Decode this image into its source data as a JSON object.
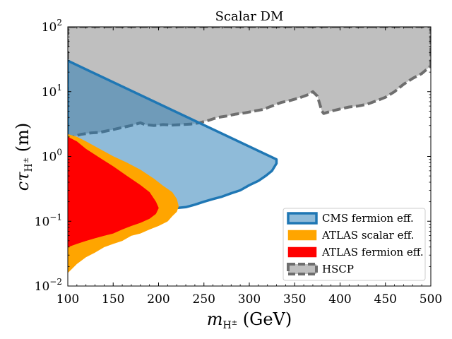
{
  "chart_data": {
    "type": "area",
    "title": "Scalar DM",
    "xlabel": "m_{H^±} (GeV)",
    "ylabel": "cτ_{H^±} (m)",
    "xscale": "linear",
    "yscale": "log",
    "xlim": [
      100,
      500
    ],
    "ylim": [
      0.01,
      100
    ],
    "x_ticks": [
      100,
      150,
      200,
      250,
      300,
      350,
      400,
      450,
      500
    ],
    "y_ticks": [
      {
        "value": 0.01,
        "label": "10",
        "exp": "−2"
      },
      {
        "value": 0.1,
        "label": "10",
        "exp": "−1"
      },
      {
        "value": 1,
        "label": "10",
        "exp": "0"
      },
      {
        "value": 10,
        "label": "10",
        "exp": "1"
      },
      {
        "value": 100,
        "label": "10",
        "exp": "2"
      }
    ],
    "legend_position": "lower-right",
    "series": [
      {
        "name": "HSCP",
        "fill": "#bfbfbf",
        "edge": "#6e6e6e",
        "edge_style": "dashed",
        "boundary": [
          [
            100,
            100
          ],
          [
            100,
            2.0
          ],
          [
            105,
            2.0
          ],
          [
            110,
            2.1
          ],
          [
            115,
            2.2
          ],
          [
            125,
            2.3
          ],
          [
            135,
            2.35
          ],
          [
            150,
            2.6
          ],
          [
            160,
            2.8
          ],
          [
            170,
            3.0
          ],
          [
            180,
            3.3
          ],
          [
            185,
            3.1
          ],
          [
            195,
            3.0
          ],
          [
            205,
            3.1
          ],
          [
            215,
            3.05
          ],
          [
            225,
            3.1
          ],
          [
            235,
            3.15
          ],
          [
            245,
            3.3
          ],
          [
            255,
            3.6
          ],
          [
            265,
            4.0
          ],
          [
            275,
            4.2
          ],
          [
            285,
            4.5
          ],
          [
            295,
            4.7
          ],
          [
            305,
            5.0
          ],
          [
            315,
            5.3
          ],
          [
            325,
            6.0
          ],
          [
            335,
            6.8
          ],
          [
            345,
            7.3
          ],
          [
            355,
            8.0
          ],
          [
            365,
            9.0
          ],
          [
            370,
            10.0
          ],
          [
            375,
            8.5
          ],
          [
            380,
            5.0
          ],
          [
            382,
            4.6
          ],
          [
            390,
            5.0
          ],
          [
            400,
            5.4
          ],
          [
            410,
            5.8
          ],
          [
            420,
            6.0
          ],
          [
            430,
            6.4
          ],
          [
            440,
            7.2
          ],
          [
            450,
            8.2
          ],
          [
            460,
            10.0
          ],
          [
            470,
            13.0
          ],
          [
            480,
            16.0
          ],
          [
            490,
            19.0
          ],
          [
            500,
            25.0
          ],
          [
            500,
            100
          ]
        ]
      },
      {
        "name": "CMS fermion eff.",
        "fill": "#1f77b4",
        "fill_alpha": 0.5,
        "edge": "#1f77b4",
        "edge_style": "solid",
        "boundary": [
          [
            100,
            30
          ],
          [
            330,
            0.9
          ],
          [
            330,
            0.78
          ],
          [
            325,
            0.6
          ],
          [
            318,
            0.5
          ],
          [
            310,
            0.42
          ],
          [
            300,
            0.36
          ],
          [
            290,
            0.3
          ],
          [
            280,
            0.27
          ],
          [
            270,
            0.24
          ],
          [
            260,
            0.22
          ],
          [
            250,
            0.2
          ],
          [
            240,
            0.18
          ],
          [
            230,
            0.165
          ],
          [
            220,
            0.16
          ],
          [
            210,
            0.155
          ],
          [
            200,
            0.15
          ],
          [
            190,
            0.14
          ],
          [
            180,
            0.135
          ],
          [
            170,
            0.125
          ],
          [
            160,
            0.11
          ],
          [
            150,
            0.1
          ],
          [
            140,
            0.095
          ],
          [
            130,
            0.085
          ],
          [
            120,
            0.075
          ],
          [
            110,
            0.065
          ],
          [
            100,
            0.06
          ]
        ]
      },
      {
        "name": "ATLAS scalar eff.",
        "fill": "#ffa500",
        "edge": "#ffa500",
        "edge_style": "solid",
        "boundary": [
          [
            100,
            2.2
          ],
          [
            110,
            2.0
          ],
          [
            120,
            1.7
          ],
          [
            135,
            1.3
          ],
          [
            150,
            1.0
          ],
          [
            165,
            0.8
          ],
          [
            180,
            0.62
          ],
          [
            195,
            0.45
          ],
          [
            205,
            0.35
          ],
          [
            215,
            0.28
          ],
          [
            220,
            0.22
          ],
          [
            222,
            0.17
          ],
          [
            220,
            0.14
          ],
          [
            215,
            0.12
          ],
          [
            210,
            0.1
          ],
          [
            200,
            0.085
          ],
          [
            190,
            0.075
          ],
          [
            180,
            0.065
          ],
          [
            170,
            0.06
          ],
          [
            160,
            0.05
          ],
          [
            150,
            0.045
          ],
          [
            140,
            0.04
          ],
          [
            130,
            0.033
          ],
          [
            120,
            0.028
          ],
          [
            110,
            0.022
          ],
          [
            100,
            0.016
          ]
        ]
      },
      {
        "name": "ATLAS fermion eff.",
        "fill": "#ff0000",
        "edge": "#ff0000",
        "edge_style": "solid",
        "boundary": [
          [
            100,
            2.0
          ],
          [
            110,
            1.7
          ],
          [
            120,
            1.3
          ],
          [
            135,
            0.95
          ],
          [
            150,
            0.7
          ],
          [
            165,
            0.5
          ],
          [
            180,
            0.36
          ],
          [
            190,
            0.28
          ],
          [
            197,
            0.2
          ],
          [
            200,
            0.16
          ],
          [
            197,
            0.13
          ],
          [
            190,
            0.11
          ],
          [
            180,
            0.095
          ],
          [
            170,
            0.085
          ],
          [
            160,
            0.075
          ],
          [
            150,
            0.065
          ],
          [
            140,
            0.06
          ],
          [
            130,
            0.055
          ],
          [
            120,
            0.05
          ],
          [
            110,
            0.045
          ],
          [
            100,
            0.04
          ]
        ]
      }
    ]
  }
}
